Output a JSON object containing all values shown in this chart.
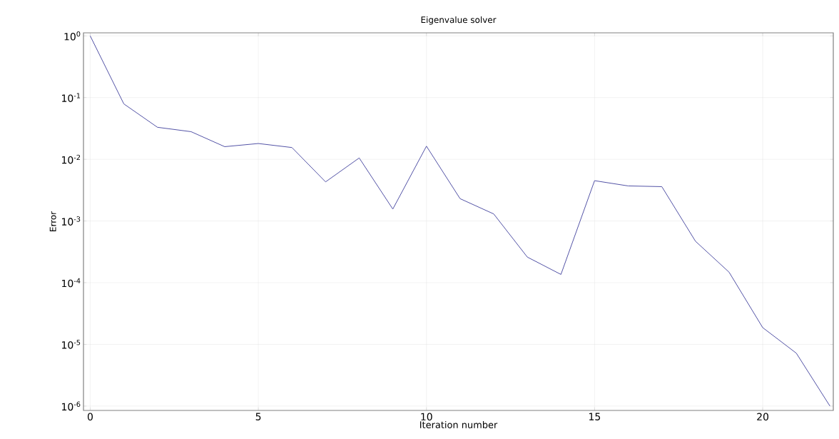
{
  "chart_data": {
    "type": "line",
    "title": "Eigenvalue solver",
    "xlabel": "Iteration number",
    "ylabel": "Error",
    "x": [
      0,
      1,
      2,
      3,
      4,
      5,
      6,
      7,
      8,
      9,
      10,
      11,
      12,
      13,
      14,
      15,
      16,
      17,
      18,
      19,
      20,
      21,
      22
    ],
    "series": [
      {
        "color": "#5252a6",
        "values": [
          1,
          0.079,
          0.033,
          0.028,
          0.016,
          0.018,
          0.0155,
          0.0043,
          0.0105,
          0.00156,
          0.0163,
          0.0023,
          0.0013,
          0.00026,
          0.000136,
          0.0045,
          0.0037,
          0.0036,
          0.00047,
          0.000148,
          1.87e-05,
          7.2e-06,
          1e-06
        ]
      }
    ],
    "log": "y",
    "grid": true,
    "marker": "none",
    "line_style": "solid",
    "xlim": [
      -0.2,
      22.1
    ],
    "xticks": [
      0,
      5,
      10,
      15,
      20
    ],
    "ylim": [
      8.5e-07,
      1.12
    ],
    "yticks": [
      {
        "value": 1,
        "label": "10$^{0}$"
      },
      {
        "value": 0.1,
        "label": "10$^{-1}$"
      },
      {
        "value": 0.01,
        "label": "10$^{-2}$"
      },
      {
        "value": 0.001,
        "label": "10$^{-3}$"
      },
      {
        "value": 0.0001,
        "label": "10$^{-4}$"
      },
      {
        "value": 1e-05,
        "label": "10$^{-5}$"
      },
      {
        "value": 1e-06,
        "label": "10$^{-6}$"
      }
    ]
  }
}
